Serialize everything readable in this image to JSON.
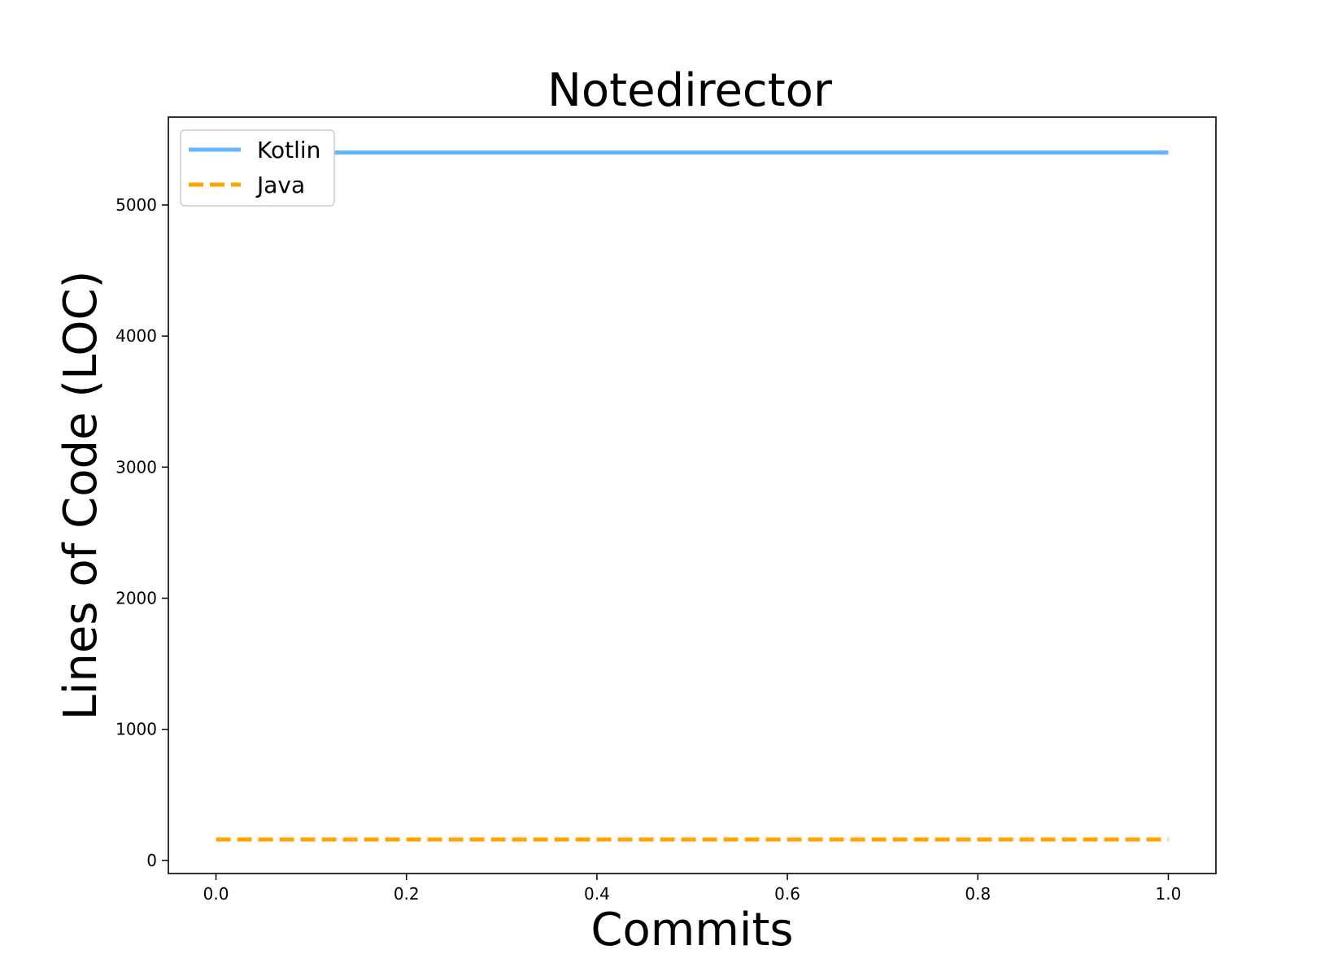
{
  "chart_data": {
    "type": "line",
    "title": "Notedirector",
    "xlabel": "Commits",
    "ylabel": "Lines of Code (LOC)",
    "xlim": [
      -0.05,
      1.05
    ],
    "ylim": [
      -100,
      5670
    ],
    "x_ticks": [
      0.0,
      0.2,
      0.4,
      0.6,
      0.8,
      1.0
    ],
    "x_tick_labels": [
      "0.0",
      "0.2",
      "0.4",
      "0.6",
      "0.8",
      "1.0"
    ],
    "y_ticks": [
      0,
      1000,
      2000,
      3000,
      4000,
      5000
    ],
    "y_tick_labels": [
      "0",
      "1000",
      "2000",
      "3000",
      "4000",
      "5000"
    ],
    "grid": false,
    "legend_position": "top-left",
    "series": [
      {
        "name": "Kotlin",
        "x": [
          0,
          1
        ],
        "values": [
          5400,
          5400
        ],
        "color": "#66b3ff",
        "style": "solid"
      },
      {
        "name": "Java",
        "x": [
          0,
          1
        ],
        "values": [
          160,
          160
        ],
        "color": "#ffa500",
        "style": "dashed"
      }
    ]
  }
}
